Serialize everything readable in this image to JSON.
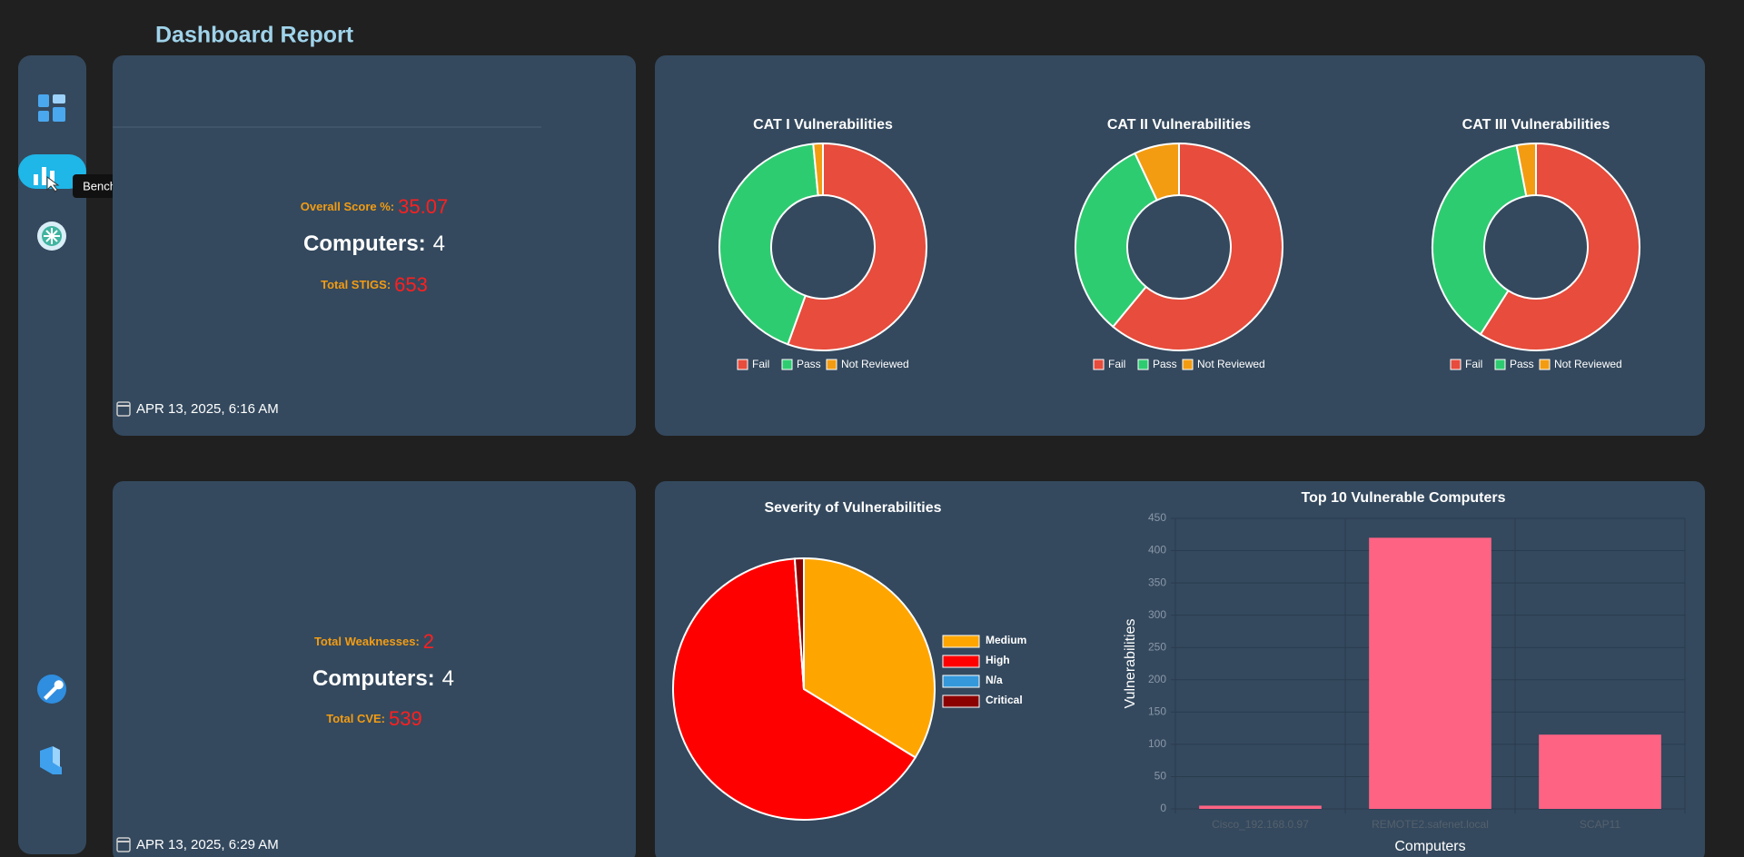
{
  "header": {
    "title": "Dashboard Report"
  },
  "sidebar": {
    "tooltip": "Benchmark"
  },
  "stig_summary": {
    "score_label": "Overall Score %:",
    "score": 35.07,
    "computers_label": "Computers:",
    "computers": 4,
    "total_label": "Total STIGS:",
    "total": 653,
    "date": "APR 13, 2025, 6:16 AM"
  },
  "cve_summary": {
    "score_label": "Total Weaknesses:",
    "score": 2,
    "computers_label": "Computers:",
    "computers": 4,
    "total_label": "Total CVE:",
    "total": 539,
    "date": "APR 13, 2025, 6:29 AM"
  },
  "chart_data": [
    {
      "type": "doughnut",
      "title": "CAT I Vulnerabilities",
      "categories": [
        "Fail",
        "Pass",
        "Not Reviewed"
      ],
      "values": [
        55.5,
        43,
        1.5
      ],
      "colors": [
        "#e74c3c",
        "#2ecc71",
        "#f39c12"
      ]
    },
    {
      "type": "doughnut",
      "title": "CAT II Vulnerabilities",
      "categories": [
        "Fail",
        "Pass",
        "Not Reviewed"
      ],
      "values": [
        61,
        32,
        7
      ],
      "colors": [
        "#e74c3c",
        "#2ecc71",
        "#f39c12"
      ]
    },
    {
      "type": "doughnut",
      "title": "CAT III Vulnerabilities",
      "categories": [
        "Fail",
        "Pass",
        "Not Reviewed"
      ],
      "values": [
        59,
        38,
        3
      ],
      "colors": [
        "#e74c3c",
        "#2ecc71",
        "#f39c12"
      ]
    },
    {
      "type": "pie",
      "title": "Severity of Vulnerabilities",
      "categories": [
        "Medium",
        "High",
        "N/a",
        "Critical"
      ],
      "values": [
        182,
        351,
        0,
        6
      ],
      "colors": [
        "#ffa500",
        "#ff0000",
        "#3498db",
        "#8b0000"
      ],
      "legend": "right"
    },
    {
      "type": "bar",
      "title": "Top 10 Vulnerable Computers",
      "xlabel": "Computers",
      "ylabel": "Vulnerabilities",
      "categories": [
        "Cisco_192.168.0.97",
        "REMOTE2.safenet.local",
        "SCAP11"
      ],
      "values": [
        5,
        420,
        115
      ],
      "color": "#ff6384",
      "ylim": [
        0,
        450
      ],
      "yticks": [
        0,
        50,
        100,
        150,
        200,
        250,
        300,
        350,
        400,
        450
      ],
      "grid": true
    }
  ]
}
